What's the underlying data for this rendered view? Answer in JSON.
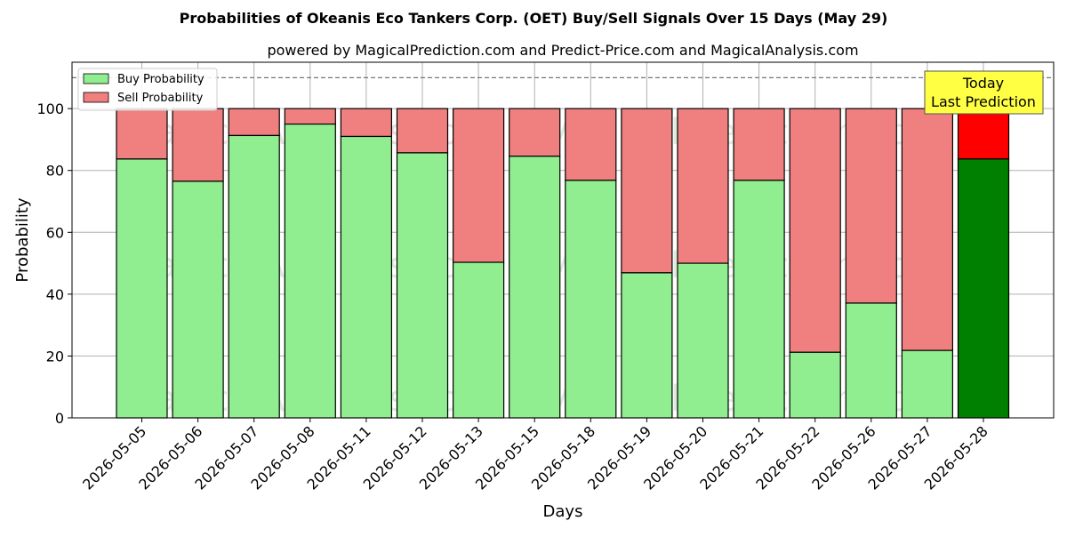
{
  "chart_data": {
    "type": "bar",
    "stacked": true,
    "title": "Probabilities of Okeanis Eco Tankers Corp. (OET) Buy/Sell Signals Over 15 Days (May 29)",
    "subtitle": "powered by MagicalPrediction.com and Predict-Price.com and MagicalAnalysis.com",
    "xlabel": "Days",
    "ylabel": "Probability",
    "ylim": [
      0,
      115
    ],
    "yticks": [
      0,
      20,
      40,
      60,
      80,
      100
    ],
    "grid": true,
    "legend_position": "top-left",
    "reference_line": 110,
    "categories": [
      "2026-05-05",
      "2026-05-06",
      "2026-05-07",
      "2026-05-08",
      "2026-05-11",
      "2026-05-12",
      "2026-05-13",
      "2026-05-15",
      "2026-05-18",
      "2026-05-19",
      "2026-05-20",
      "2026-05-21",
      "2026-05-22",
      "2026-05-26",
      "2026-05-27",
      "2026-05-28"
    ],
    "series": [
      {
        "name": "Buy Probability",
        "color": "#90ee90",
        "values": [
          83.7,
          76.5,
          91.3,
          95.0,
          91.0,
          85.7,
          50.3,
          84.6,
          76.8,
          46.9,
          50.0,
          76.8,
          21.2,
          37.1,
          21.8,
          83.7
        ]
      },
      {
        "name": "Sell Probability",
        "color": "#f08080",
        "values": [
          16.3,
          23.5,
          8.7,
          5.0,
          9.0,
          14.3,
          49.7,
          15.4,
          23.2,
          53.1,
          50.0,
          23.2,
          78.8,
          62.9,
          78.2,
          16.3
        ]
      }
    ],
    "highlight": {
      "index": 15,
      "buy_color": "#008000",
      "sell_color": "#ff0000"
    },
    "annotation": {
      "lines": [
        "Today",
        "Last Prediction"
      ],
      "background": "#ffff44"
    },
    "watermarks": [
      "MagicalAnalysis.com",
      "MagicalPrediction.com"
    ]
  }
}
